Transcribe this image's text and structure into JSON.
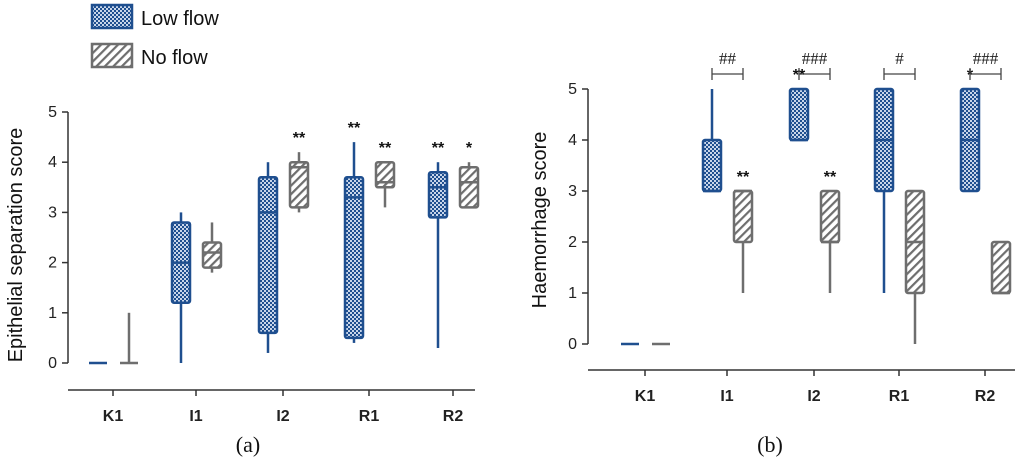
{
  "legend": {
    "low_flow": "Low flow",
    "no_flow": "No flow"
  },
  "colors": {
    "low_flow": "#1f4f8f",
    "no_flow": "#6e6e6e",
    "axis": "#333333"
  },
  "chart_data": [
    {
      "type": "box",
      "panel": "(a)",
      "ylabel": "Epithelial separation score",
      "xlabel": "",
      "ylim": [
        0,
        5
      ],
      "yticks": [
        "0",
        "1",
        "2",
        "3",
        "4",
        "5"
      ],
      "categories": [
        "K1",
        "I1",
        "I2",
        "R1",
        "R2"
      ],
      "series": [
        {
          "name": "Low flow",
          "boxes": [
            {
              "min": 0,
              "q1": 0,
              "median": 0,
              "q3": 0,
              "max": 0,
              "mark": ""
            },
            {
              "min": 0,
              "q1": 1.2,
              "median": 2.0,
              "q3": 2.8,
              "max": 3.0,
              "mark": ""
            },
            {
              "min": 0.2,
              "q1": 0.6,
              "median": 3.0,
              "q3": 3.7,
              "max": 4.0,
              "mark": ""
            },
            {
              "min": 0.4,
              "q1": 0.5,
              "median": 3.3,
              "q3": 3.7,
              "max": 4.4,
              "mark": "**"
            },
            {
              "min": 0.3,
              "q1": 2.9,
              "median": 3.5,
              "q3": 3.8,
              "max": 4.0,
              "mark": "**"
            }
          ]
        },
        {
          "name": "No flow",
          "boxes": [
            {
              "min": 0,
              "q1": 0,
              "median": 0,
              "q3": 0,
              "max": 1.0,
              "mark": ""
            },
            {
              "min": 1.8,
              "q1": 1.9,
              "median": 2.2,
              "q3": 2.4,
              "max": 2.8,
              "mark": ""
            },
            {
              "min": 3.0,
              "q1": 3.1,
              "median": 3.9,
              "q3": 4.0,
              "max": 4.2,
              "mark": "**"
            },
            {
              "min": 3.1,
              "q1": 3.5,
              "median": 3.6,
              "q3": 4.0,
              "max": 4.0,
              "mark": "**"
            },
            {
              "min": 3.1,
              "q1": 3.1,
              "median": 3.6,
              "q3": 3.9,
              "max": 4.0,
              "mark": "*"
            }
          ]
        }
      ],
      "group_marks": [
        "",
        "",
        "",
        "",
        ""
      ]
    },
    {
      "type": "box",
      "panel": "(b)",
      "ylabel": "Haemorrhage score",
      "xlabel": "",
      "ylim": [
        0,
        5
      ],
      "yticks": [
        "0",
        "1",
        "2",
        "3",
        "4",
        "5"
      ],
      "categories": [
        "K1",
        "I1",
        "I2",
        "R1",
        "R2"
      ],
      "series": [
        {
          "name": "Low flow",
          "boxes": [
            {
              "min": 0,
              "q1": 0,
              "median": 0,
              "q3": 0,
              "max": 0,
              "mark": ""
            },
            {
              "min": 3.0,
              "q1": 3.0,
              "median": 3.0,
              "q3": 4.0,
              "max": 5.0,
              "mark": ""
            },
            {
              "min": 4.0,
              "q1": 4.0,
              "median": 4.0,
              "q3": 5.0,
              "max": 5.0,
              "mark": "**"
            },
            {
              "min": 1.0,
              "q1": 3.0,
              "median": 4.0,
              "q3": 5.0,
              "max": 5.0,
              "mark": ""
            },
            {
              "min": 3.0,
              "q1": 3.0,
              "median": 4.0,
              "q3": 5.0,
              "max": 5.0,
              "mark": "*"
            }
          ]
        },
        {
          "name": "No flow",
          "boxes": [
            {
              "min": 0,
              "q1": 0,
              "median": 0,
              "q3": 0,
              "max": 0,
              "mark": ""
            },
            {
              "min": 1.0,
              "q1": 2.0,
              "median": 3.0,
              "q3": 3.0,
              "max": 3.0,
              "mark": "**"
            },
            {
              "min": 1.0,
              "q1": 2.0,
              "median": 2.0,
              "q3": 3.0,
              "max": 3.0,
              "mark": "**"
            },
            {
              "min": 0,
              "q1": 1.0,
              "median": 2.0,
              "q3": 3.0,
              "max": 3.0,
              "mark": ""
            },
            {
              "min": 1.0,
              "q1": 1.0,
              "median": 1.0,
              "q3": 2.0,
              "max": 2.0,
              "mark": ""
            }
          ]
        }
      ],
      "group_marks": [
        "",
        "##",
        "###",
        "#",
        "###"
      ]
    }
  ]
}
